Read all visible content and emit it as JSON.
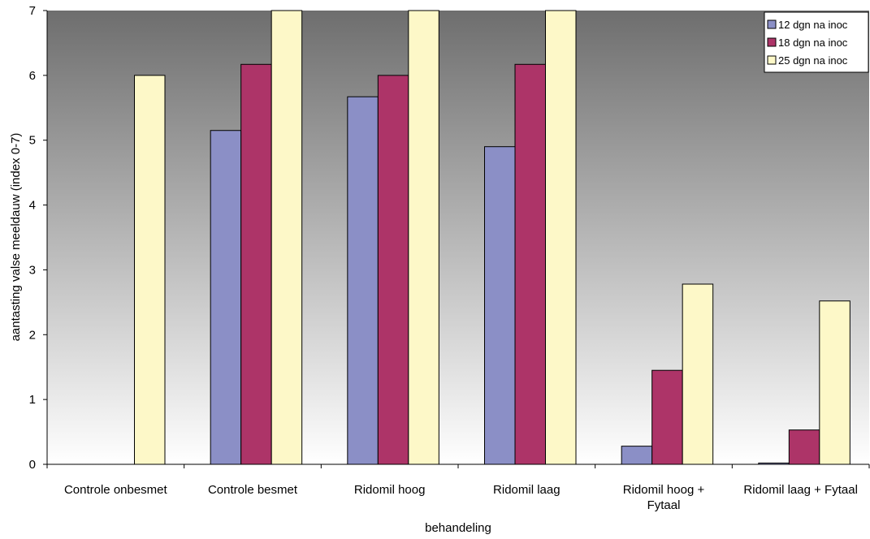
{
  "chart_data": {
    "type": "bar",
    "title": "",
    "xlabel": "behandeling",
    "ylabel": "aantasting valse meeldauw (index 0-7)",
    "ylim": [
      0,
      7
    ],
    "yticks": [
      "0",
      "1",
      "2",
      "3",
      "4",
      "5",
      "6",
      "7"
    ],
    "categories": [
      [
        "Controle onbesmet"
      ],
      [
        "Controle besmet"
      ],
      [
        "Ridomil hoog"
      ],
      [
        "Ridomil laag"
      ],
      [
        "Ridomil hoog +",
        "Fytaal"
      ],
      [
        "Ridomil laag + Fytaal"
      ]
    ],
    "series": [
      {
        "name": "12 dgn na inoc",
        "color": "#8b8fc6",
        "values": [
          0,
          5.15,
          5.67,
          4.9,
          0.28,
          0.02
        ]
      },
      {
        "name": "18 dgn na inoc",
        "color": "#ad3468",
        "values": [
          0,
          6.17,
          6.0,
          6.17,
          1.45,
          0.53
        ]
      },
      {
        "name": "25 dgn na inoc",
        "color": "#fdf8c8",
        "values": [
          6.0,
          7.0,
          7.0,
          7.0,
          2.78,
          2.52
        ]
      }
    ],
    "legend_position": "top-right",
    "background_gradient": [
      "#6e6e6e",
      "#ffffff"
    ],
    "grid": false
  }
}
